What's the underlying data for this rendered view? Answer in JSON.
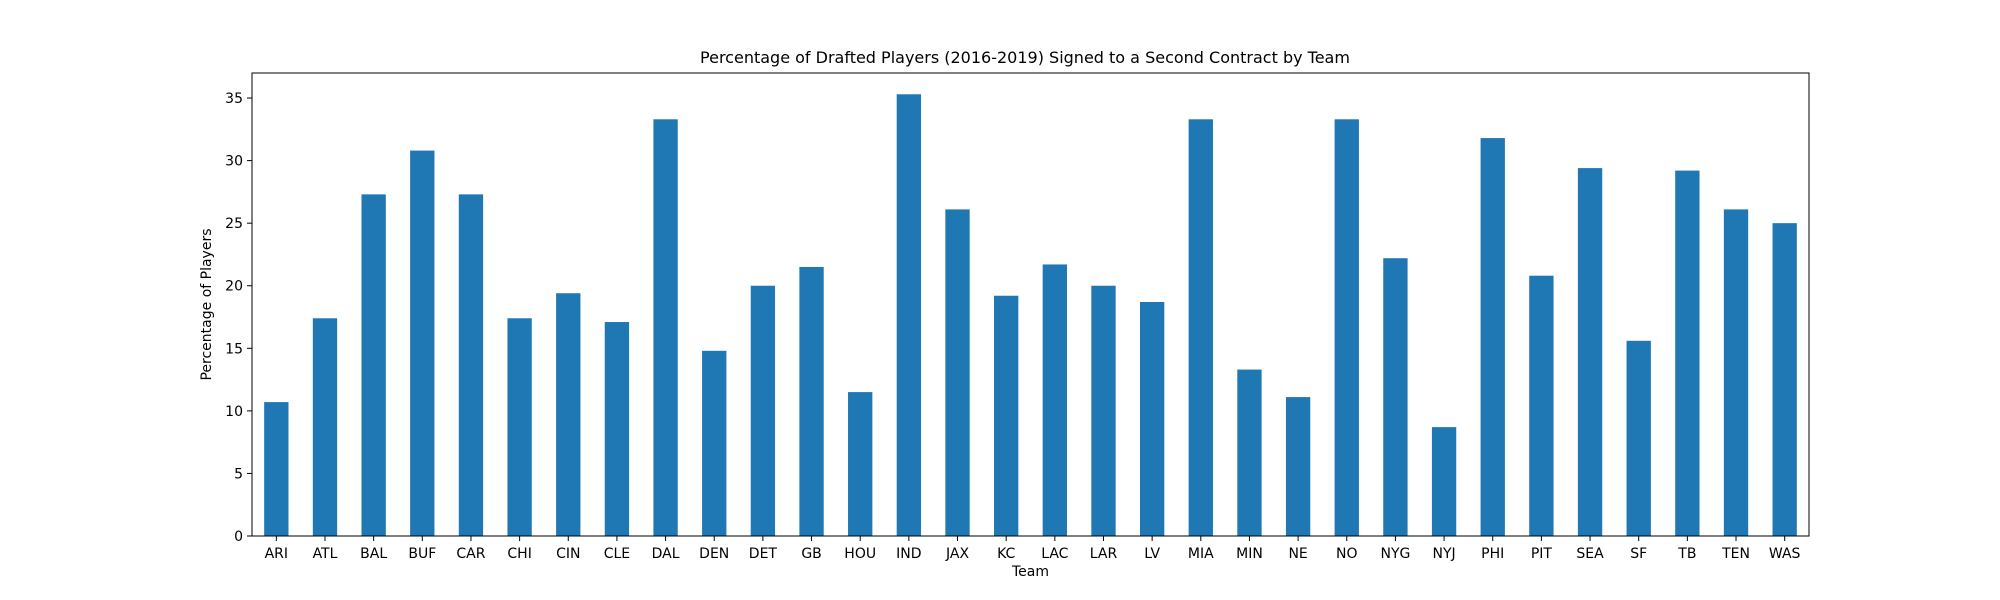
{
  "chart_data": {
    "type": "bar",
    "title": "Percentage of Drafted Players (2016-2019) Signed to a Second Contract by Team",
    "xlabel": "Team",
    "ylabel": "Percentage of Players",
    "categories": [
      "ARI",
      "ATL",
      "BAL",
      "BUF",
      "CAR",
      "CHI",
      "CIN",
      "CLE",
      "DAL",
      "DEN",
      "DET",
      "GB",
      "HOU",
      "IND",
      "JAX",
      "KC",
      "LAC",
      "LAR",
      "LV",
      "MIA",
      "MIN",
      "NE",
      "NO",
      "NYG",
      "NYJ",
      "PHI",
      "PIT",
      "SEA",
      "SF",
      "TB",
      "TEN",
      "WAS"
    ],
    "values": [
      10.7,
      17.4,
      27.3,
      30.8,
      27.3,
      17.4,
      19.4,
      17.1,
      33.3,
      14.8,
      20.0,
      21.5,
      11.5,
      35.3,
      26.1,
      19.2,
      21.7,
      20.0,
      18.7,
      33.3,
      13.3,
      11.1,
      33.3,
      22.2,
      8.7,
      31.8,
      20.8,
      29.4,
      15.6,
      29.2,
      26.1,
      25.0
    ],
    "yticks": [
      "0",
      "5",
      "10",
      "15",
      "20",
      "25",
      "30",
      "35"
    ],
    "ylim": [
      0,
      37
    ],
    "bar_color": "#1f77b4",
    "grid": false,
    "legend": false
  }
}
